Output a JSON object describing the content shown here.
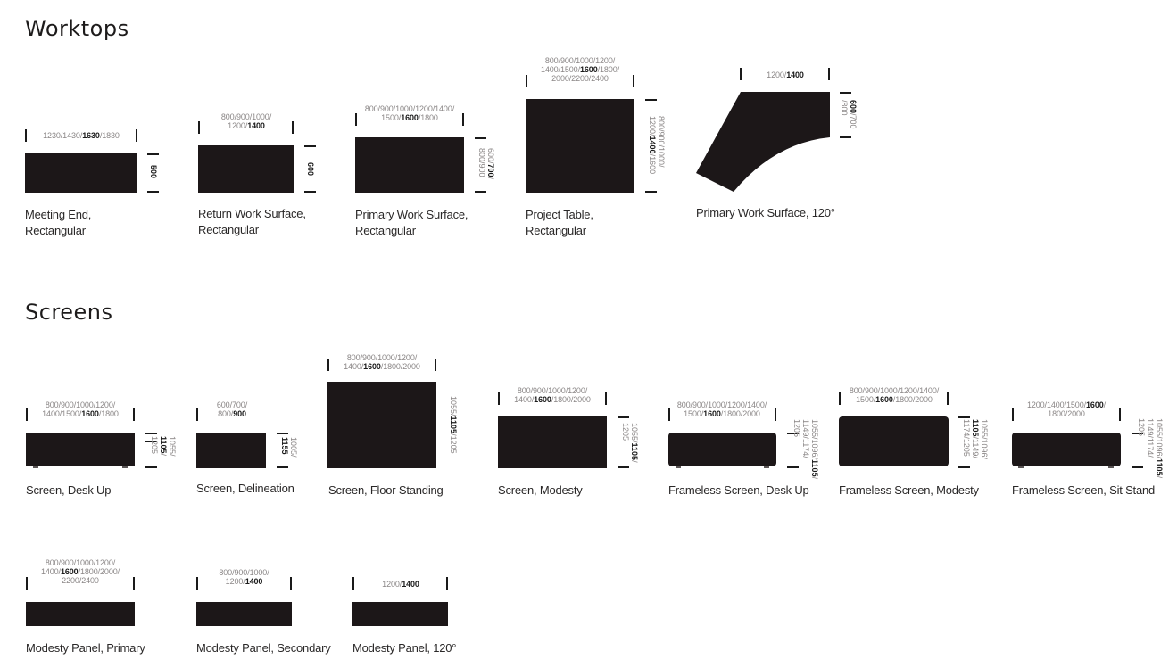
{
  "sections": {
    "worktops": "Worktops",
    "screens": "Screens"
  },
  "worktops": [
    {
      "caption": [
        "Meeting End,",
        "Rectangular"
      ],
      "width": [
        "1230/1430/",
        "1630",
        "/1830"
      ],
      "depth": [
        "",
        "500",
        ""
      ]
    },
    {
      "caption": [
        "Return Work Surface,",
        "Rectangular"
      ],
      "width": [
        "800/900/1000/",
        "1200/",
        "1400",
        ""
      ],
      "depth": [
        "",
        "600",
        ""
      ]
    },
    {
      "caption": [
        "Primary Work Surface,",
        "Rectangular"
      ],
      "width": [
        "800/900/1000/1200/1400/",
        "1500/",
        "1600",
        "/1800"
      ],
      "depth": [
        "600/",
        "700",
        "/",
        "800/900"
      ]
    },
    {
      "caption": [
        "Project Table,",
        "Rectangular"
      ],
      "width": [
        "800/900/1000/1200/",
        "1400/1500/",
        "1600",
        "/1800/",
        "2000/2200/2400"
      ],
      "depth": [
        "800/900/1000/",
        "1200/",
        "1400",
        "/1600"
      ]
    },
    {
      "caption": [
        "Primary Work Surface, 120°"
      ],
      "width": [
        "1200/",
        "1400"
      ],
      "depth": [
        "600",
        "/700",
        "/800"
      ]
    }
  ],
  "screens": [
    {
      "caption": [
        "Screen, Desk Up"
      ],
      "width": [
        "800/900/1000/1200/",
        "1400/1500/",
        "1600",
        "/1800"
      ],
      "height": [
        "1055/",
        "1105",
        "/",
        "1205"
      ]
    },
    {
      "caption": [
        "Screen, Delineation"
      ],
      "width": [
        "600/700/",
        "800/",
        "900"
      ],
      "height": [
        "1005/",
        "1155"
      ]
    },
    {
      "caption": [
        "Screen, Floor Standing"
      ],
      "width": [
        "800/900/1000/1200/",
        "1400/",
        "1600",
        "/1800/2000"
      ],
      "height": [
        "1055/",
        "1105",
        "/1205"
      ]
    },
    {
      "caption": [
        "Screen, Modesty"
      ],
      "width": [
        "800/900/1000/1200/",
        "1400/",
        "1600",
        "/1800/2000"
      ],
      "height": [
        "1055/",
        "1105",
        "/",
        "1205"
      ]
    },
    {
      "caption": [
        "Frameless Screen, Desk Up"
      ],
      "width": [
        "800/900/1000/1200/1400/",
        "1500/",
        "1600",
        "/1800/2000"
      ],
      "height": [
        "1055/1096/",
        "1105",
        "/",
        "1149/1174/",
        "1205"
      ]
    },
    {
      "caption": [
        "Frameless Screen, Modesty"
      ],
      "width": [
        "800/900/1000/1200/1400/",
        "1500/",
        "1600",
        "/1800/2000"
      ],
      "height": [
        "1055/1096/",
        "1105",
        "/1149/",
        "1174/1205"
      ]
    },
    {
      "caption": [
        "Frameless Screen, Sit Stand"
      ],
      "width": [
        "1200/1400/1500/",
        "1600",
        "/",
        "1800/2000"
      ],
      "height": [
        "1055/1096/",
        "1105",
        "/",
        "1149/1174/",
        "1205"
      ]
    }
  ],
  "panels": [
    {
      "caption": [
        "Modesty Panel, Primary"
      ],
      "width": [
        "800/900/1000/1200/",
        "1400/",
        "1600",
        "/1800/2000/",
        "2200/2400"
      ]
    },
    {
      "caption": [
        "Modesty Panel, Secondary"
      ],
      "width": [
        "800/900/1000/",
        "1200/",
        "1400"
      ]
    },
    {
      "caption": [
        "Modesty Panel, 120°"
      ],
      "width": [
        "1200/",
        "1400"
      ]
    }
  ],
  "colors": {
    "shape": "#1c1718",
    "dim_grey": "#8a8686",
    "text": "#2a2828"
  }
}
